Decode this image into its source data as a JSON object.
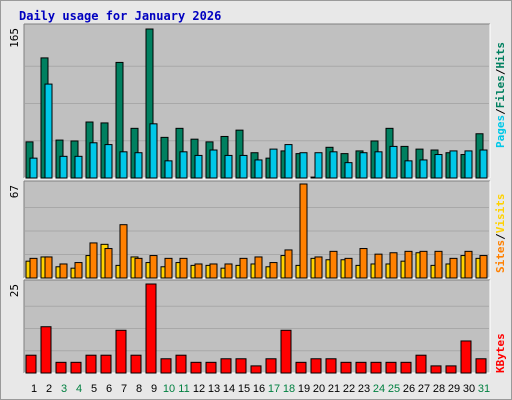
{
  "title": "Daily usage for January 2026",
  "colors": {
    "pages": "#008060",
    "hits": "#00c8e8",
    "visits": "#ffd200",
    "sites": "#ff8000",
    "kbytes": "#ff0000",
    "weekend": "#008040",
    "weekday": "#000000",
    "title": "#0000c0",
    "panel": "#c0c0c0"
  },
  "legend_labels": {
    "top": [
      "Pages",
      "/",
      "Files",
      "/",
      "Hits"
    ],
    "middle": [
      "Sites",
      "/",
      "Visits"
    ],
    "bottom": [
      "KBytes"
    ]
  },
  "chart_data": [
    {
      "type": "bar",
      "ymax_label": "165",
      "ylim": [
        0,
        165
      ],
      "categories": [
        "1",
        "2",
        "3",
        "4",
        "5",
        "6",
        "7",
        "8",
        "9",
        "10",
        "11",
        "12",
        "13",
        "14",
        "15",
        "16",
        "17",
        "18",
        "19",
        "20",
        "21",
        "22",
        "23",
        "24",
        "25",
        "26",
        "27",
        "28",
        "29",
        "30",
        "31"
      ],
      "series": [
        {
          "name": "Pages",
          "values": [
            40,
            133,
            42,
            41,
            62,
            61,
            128,
            55,
            165,
            45,
            55,
            43,
            40,
            46,
            53,
            28,
            22,
            30,
            27,
            1,
            34,
            27,
            30,
            41,
            55,
            35,
            32,
            31,
            28,
            26,
            49
          ]
        },
        {
          "name": "Hits",
          "values": [
            22,
            104,
            24,
            24,
            39,
            37,
            29,
            28,
            60,
            19,
            29,
            25,
            31,
            25,
            25,
            20,
            32,
            37,
            28,
            28,
            29,
            17,
            28,
            29,
            35,
            19,
            20,
            26,
            30,
            30,
            31
          ]
        }
      ]
    },
    {
      "type": "bar",
      "ymax_label": "67",
      "ylim": [
        0,
        67
      ],
      "categories": [
        "1",
        "2",
        "3",
        "4",
        "5",
        "6",
        "7",
        "8",
        "9",
        "10",
        "11",
        "12",
        "13",
        "14",
        "15",
        "16",
        "17",
        "18",
        "19",
        "20",
        "21",
        "22",
        "23",
        "24",
        "25",
        "26",
        "27",
        "28",
        "29",
        "30",
        "31"
      ],
      "series": [
        {
          "name": "Visits",
          "values": [
            12,
            15,
            8,
            7,
            16,
            24,
            9,
            15,
            11,
            8,
            11,
            9,
            9,
            7,
            9,
            10,
            8,
            16,
            9,
            14,
            13,
            13,
            9,
            10,
            10,
            12,
            18,
            9,
            10,
            16,
            14
          ]
        },
        {
          "name": "Sites",
          "values": [
            14,
            15,
            10,
            11,
            25,
            21,
            38,
            14,
            16,
            14,
            14,
            10,
            10,
            10,
            14,
            15,
            11,
            20,
            67,
            15,
            19,
            14,
            21,
            17,
            18,
            19,
            19,
            19,
            14,
            19,
            16
          ]
        }
      ]
    },
    {
      "type": "bar",
      "ymax_label": "25",
      "ylim": [
        0,
        25
      ],
      "categories": [
        "1",
        "2",
        "3",
        "4",
        "5",
        "6",
        "7",
        "8",
        "9",
        "10",
        "11",
        "12",
        "13",
        "14",
        "15",
        "16",
        "17",
        "18",
        "19",
        "20",
        "21",
        "22",
        "23",
        "24",
        "25",
        "26",
        "27",
        "28",
        "29",
        "30",
        "31"
      ],
      "series": [
        {
          "name": "KBytes",
          "values": [
            5,
            13,
            3,
            3,
            5,
            5,
            12,
            5,
            25,
            4,
            5,
            3,
            3,
            4,
            4,
            2,
            4,
            12,
            3,
            4,
            4,
            3,
            3,
            3,
            3,
            3,
            5,
            2,
            2,
            9,
            4
          ]
        }
      ]
    }
  ],
  "weekend_days": [
    "3",
    "4",
    "10",
    "11",
    "17",
    "18",
    "24",
    "25",
    "31"
  ]
}
